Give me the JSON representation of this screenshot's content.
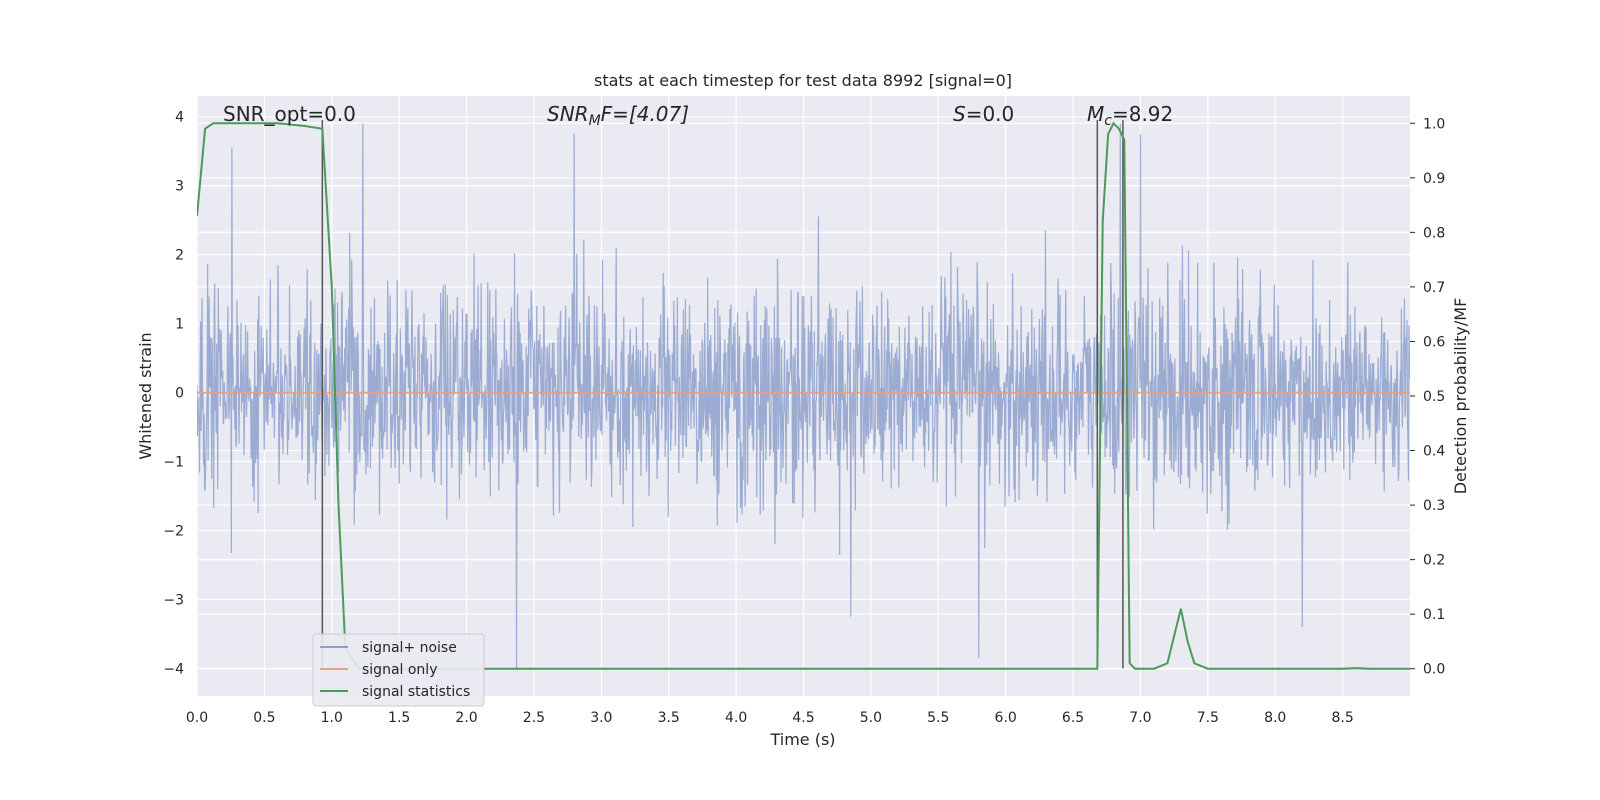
{
  "chart_data": {
    "type": "line",
    "title": "stats at each timestep for test data 8992 [signal=0]",
    "xlabel": "Time (s)",
    "ylabel_left": "Whitened strain",
    "ylabel_right": "Detection probability/MF",
    "xlim": [
      0,
      9.0
    ],
    "ylim_left": [
      -4.4,
      4.3
    ],
    "ylim_right": [
      -0.05,
      1.05
    ],
    "x_ticks": [
      0.0,
      0.5,
      1.0,
      1.5,
      2.0,
      2.5,
      3.0,
      3.5,
      4.0,
      4.5,
      5.0,
      5.5,
      6.0,
      6.5,
      7.0,
      7.5,
      8.0,
      8.5
    ],
    "x_tick_labels": [
      "0.0",
      "0.5",
      "1.0",
      "1.5",
      "2.0",
      "2.5",
      "3.0",
      "3.5",
      "4.0",
      "4.5",
      "5.0",
      "5.5",
      "6.0",
      "6.5",
      "7.0",
      "7.5",
      "8.0",
      "8.5"
    ],
    "y_left_ticks": [
      -4,
      -3,
      -2,
      -1,
      0,
      1,
      2,
      3,
      4
    ],
    "y_left_tick_labels": [
      "−4",
      "−3",
      "−2",
      "−1",
      "0",
      "1",
      "2",
      "3",
      "4"
    ],
    "y_right_ticks": [
      0.0,
      0.1,
      0.2,
      0.3,
      0.4,
      0.5,
      0.6,
      0.7,
      0.8,
      0.9,
      1.0
    ],
    "y_right_tick_labels": [
      "0.0",
      "0.1",
      "0.2",
      "0.3",
      "0.4",
      "0.5",
      "0.6",
      "0.7",
      "0.8",
      "0.9",
      "1.0"
    ],
    "grid": true,
    "legend_position": "lower-left",
    "annotations": {
      "snr_opt": "SNR_opt=0.0",
      "snr_mf_sym": "SNR",
      "snr_mf_sub": "M",
      "snr_mf_rest": "F=[4.07]",
      "s_sym": "S",
      "s_rest": "=0.0",
      "mc_sym": "M",
      "mc_sub": "c",
      "mc_rest": "=8.92"
    },
    "series": [
      {
        "name": "signal+ noise",
        "axis": "left",
        "color": "#8da0cb",
        "note": "dense noise trace, approx. gaussian, typical envelope -2 to 2, spikes to about +-3.9",
        "noise_sigma": 0.75,
        "peaks": [
          {
            "x": 0.26,
            "y": 3.55
          },
          {
            "x": 1.23,
            "y": 3.9
          },
          {
            "x": 2.37,
            "y": -4.0
          },
          {
            "x": 2.8,
            "y": 3.75
          },
          {
            "x": 4.85,
            "y": -3.25
          },
          {
            "x": 5.8,
            "y": -3.85
          },
          {
            "x": 6.85,
            "y": 3.9
          },
          {
            "x": 7.0,
            "y": 3.75
          },
          {
            "x": 8.2,
            "y": -3.4
          }
        ]
      },
      {
        "name": "signal only",
        "axis": "left",
        "color": "#e8a07f",
        "x": [
          0.0,
          9.0
        ],
        "y": [
          0.0,
          0.0
        ]
      },
      {
        "name": "signal statistics",
        "axis": "right",
        "color": "#4c9a5a",
        "x": [
          0.0,
          0.06,
          0.12,
          0.2,
          0.4,
          0.6,
          0.8,
          0.93,
          1.0,
          1.05,
          1.1,
          1.2,
          1.5,
          2.0,
          3.0,
          4.0,
          5.0,
          6.0,
          6.5,
          6.68,
          6.72,
          6.76,
          6.8,
          6.84,
          6.88,
          6.92,
          6.96,
          7.0,
          7.1,
          7.2,
          7.25,
          7.3,
          7.35,
          7.4,
          7.5,
          8.0,
          8.5,
          8.6,
          8.7,
          9.0
        ],
        "y": [
          0.83,
          0.99,
          1.0,
          1.0,
          1.0,
          1.0,
          0.995,
          0.99,
          0.7,
          0.3,
          0.04,
          0.0,
          0.0,
          0.0,
          0.0,
          0.0,
          0.0,
          0.0,
          0.0,
          0.0,
          0.82,
          0.98,
          1.0,
          0.99,
          0.97,
          0.01,
          0.0,
          0.0,
          0.0,
          0.01,
          0.06,
          0.11,
          0.05,
          0.01,
          0.0,
          0.0,
          0.0,
          0.001,
          0.0,
          0.0
        ]
      }
    ],
    "vertical_markers": [
      {
        "x": 0.93,
        "y_from": -4.0,
        "y_to": 3.95
      },
      {
        "x": 6.68,
        "y_from": -4.0,
        "y_to": 3.95
      },
      {
        "x": 6.87,
        "y_from": -4.0,
        "y_to": 3.95
      }
    ]
  }
}
